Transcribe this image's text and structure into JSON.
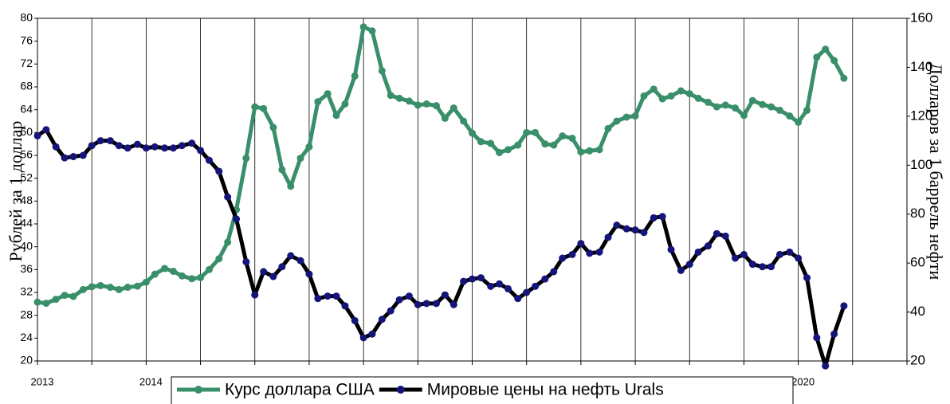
{
  "chart_data": {
    "type": "line",
    "x": [
      2013.0,
      2013.08,
      2013.17,
      2013.25,
      2013.33,
      2013.42,
      2013.5,
      2013.58,
      2013.67,
      2013.75,
      2013.83,
      2013.92,
      2014.0,
      2014.08,
      2014.17,
      2014.25,
      2014.33,
      2014.42,
      2014.5,
      2014.58,
      2014.67,
      2014.75,
      2014.83,
      2014.92,
      2015.0,
      2015.08,
      2015.17,
      2015.25,
      2015.33,
      2015.42,
      2015.5,
      2015.58,
      2015.67,
      2015.75,
      2015.83,
      2015.92,
      2016.0,
      2016.08,
      2016.17,
      2016.25,
      2016.33,
      2016.42,
      2016.5,
      2016.58,
      2016.67,
      2016.75,
      2016.83,
      2016.92,
      2017.0,
      2017.08,
      2017.17,
      2017.25,
      2017.33,
      2017.42,
      2017.5,
      2017.58,
      2017.67,
      2017.75,
      2017.83,
      2017.92,
      2018.0,
      2018.08,
      2018.17,
      2018.25,
      2018.33,
      2018.42,
      2018.5,
      2018.58,
      2018.67,
      2018.75,
      2018.83,
      2018.92,
      2019.0,
      2019.08,
      2019.17,
      2019.25,
      2019.33,
      2019.42,
      2019.5,
      2019.58,
      2019.67,
      2019.75,
      2019.83,
      2019.92,
      2020.0,
      2020.08,
      2020.17,
      2020.25,
      2020.33,
      2020.42
    ],
    "series": [
      {
        "name": "Курс доллара США",
        "color": "#3a8f6b",
        "values": [
          30.3,
          30.1,
          30.8,
          31.5,
          31.3,
          32.5,
          33,
          33.2,
          32.9,
          32.5,
          32.9,
          33.1,
          33.8,
          35.2,
          36.2,
          35.7,
          34.9,
          34.4,
          34.6,
          36.0,
          37.9,
          40.8,
          46.5,
          55.5,
          64.5,
          64.2,
          60.9,
          53.5,
          50.6,
          55.5,
          57.5,
          65.4,
          66.8,
          63,
          65,
          69.9,
          78.5,
          77.8,
          70.8,
          66.5,
          66.0,
          65.5,
          64.8,
          65,
          64.7,
          62.5,
          64.3,
          62,
          59.9,
          58.4,
          58.1,
          56.5,
          57,
          57.8,
          60,
          60,
          58,
          57.8,
          59.4,
          59,
          56.6,
          56.8,
          57.0,
          60.7,
          62,
          62.7,
          62.9,
          66.4,
          67.6,
          65.9,
          66.4,
          67.3,
          66.8,
          66,
          65.3,
          64.5,
          64.8,
          64.3,
          63,
          65.6,
          64.9,
          64.5,
          63.9,
          62.9,
          61.8,
          63.9,
          73.2,
          74.6,
          72.6,
          69.5
        ]
      },
      {
        "name": "Мировые цены на нефть Urals",
        "color": "#000000",
        "marker_color": "#14147a",
        "axis": "y2",
        "values": [
          112,
          114.5,
          107.5,
          103,
          103.5,
          104,
          108,
          110,
          110,
          108,
          107,
          108.5,
          107,
          107.5,
          107,
          107,
          108,
          109,
          106,
          102,
          97.5,
          87,
          78,
          60.5,
          47,
          56.5,
          54.5,
          58.5,
          63,
          61,
          55.5,
          45.5,
          46.5,
          46.5,
          42.5,
          36.5,
          29.5,
          31,
          37,
          40.5,
          45,
          46.5,
          43,
          43.5,
          43.5,
          47,
          43,
          52.5,
          53.5,
          54,
          50.5,
          51.5,
          49.5,
          45.5,
          48,
          50.5,
          53.5,
          56.5,
          62,
          63.5,
          68,
          64,
          64.5,
          70.5,
          75.5,
          74,
          73.5,
          72.5,
          78.5,
          79,
          65.5,
          57,
          59.5,
          64.5,
          67,
          72,
          71,
          62,
          63.5,
          59.5,
          58.5,
          58.5,
          63.5,
          64.5,
          62,
          54,
          29.5,
          18,
          31,
          42.5
        ]
      }
    ],
    "ylabel": "Рублей за 1 доллар",
    "y2label": "Долларов за 1 баррель нефти",
    "xlim": [
      2013,
      2021
    ],
    "xticks": [
      2013,
      {
        "value": 2013.5,
        "label": null
      },
      2014,
      {
        "value": 2014.5,
        "label": null
      },
      {
        "value": 2015,
        "label": null
      },
      {
        "value": 2015.5,
        "label": null
      },
      {
        "value": 2016,
        "label": null
      },
      {
        "value": 2016.5,
        "label": null
      },
      {
        "value": 2017,
        "label": null
      },
      {
        "value": 2017.5,
        "label": null
      },
      {
        "value": 2018,
        "label": null
      },
      {
        "value": 2018.5,
        "label": null
      },
      {
        "value": 2019,
        "label": null
      },
      {
        "value": 2019.5,
        "label": null
      },
      2020,
      {
        "value": 2020.5,
        "label": null
      },
      {
        "value": 2021,
        "label": null
      }
    ],
    "ylim": [
      20,
      80
    ],
    "yticks": [
      20,
      24,
      28,
      32,
      36,
      40,
      44,
      48,
      52,
      56,
      60,
      64,
      68,
      72,
      76,
      80
    ],
    "y2lim": [
      20,
      160
    ],
    "y2ticks": [
      20,
      40,
      60,
      80,
      100,
      120,
      140,
      160
    ],
    "grid": "x",
    "legend": "bottom"
  }
}
